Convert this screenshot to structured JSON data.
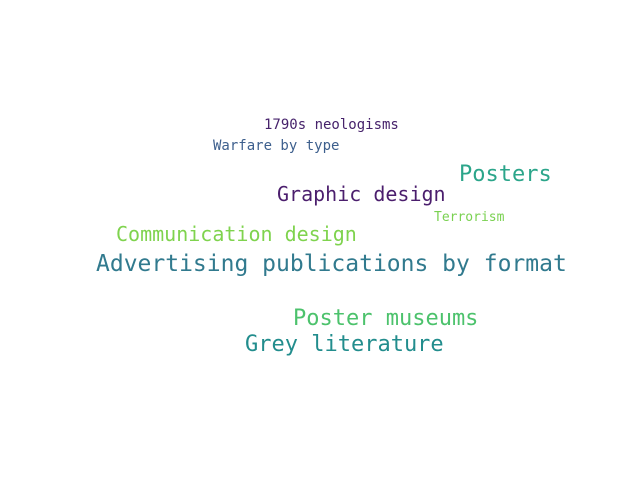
{
  "word_cloud": {
    "words": [
      {
        "text": "1790s neologisms",
        "color": "#46226b"
      },
      {
        "text": "Warfare by type",
        "color": "#3d5f8d"
      },
      {
        "text": "Posters",
        "color": "#2ba58a"
      },
      {
        "text": "Graphic design",
        "color": "#4b1e6d"
      },
      {
        "text": "Terrorism",
        "color": "#7ad151"
      },
      {
        "text": "Communication design",
        "color": "#7fd34e"
      },
      {
        "text": "Advertising publications by format",
        "color": "#317a8e"
      },
      {
        "text": "Poster museums",
        "color": "#4cc26c"
      },
      {
        "text": "Grey literature",
        "color": "#228d8d"
      }
    ]
  }
}
